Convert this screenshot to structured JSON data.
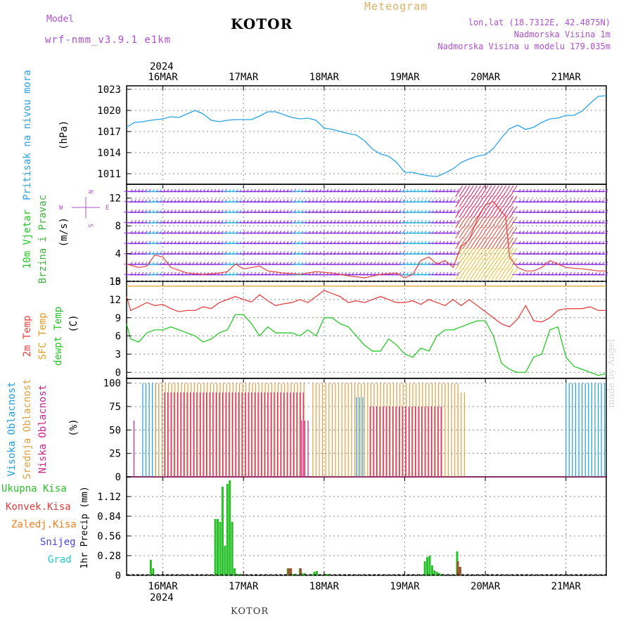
{
  "header": {
    "model_label": "Model",
    "model_name": "wrf-nmm_v3.9.1 e1km",
    "station": "KOTOR",
    "title": "Meteogram",
    "lonlat": "lon,lat (18.7312E, 42.4875N)",
    "elevation": "Nadmorska Visina 1m",
    "model_elevation": "Nadmorska Visina u modelu 179.035m"
  },
  "footer": {
    "station": "KOTOR",
    "credit": "made by Angel"
  },
  "time_axis": {
    "top_year": "2024",
    "bottom_year": "2024",
    "labels": [
      "16MAR",
      "17MAR",
      "18MAR",
      "19MAR",
      "20MAR",
      "21MAR"
    ],
    "start_day": 15.55,
    "end_day": 21.5
  },
  "colors": {
    "pressure": "#29a3e8",
    "wind_label": "#1ec81e",
    "wind_label2": "#3cb43c",
    "t2m": "#e84040",
    "sfc": "#e0a020",
    "dew": "#28c828",
    "cloud_high": "#1ea0e6",
    "cloud_mid": "#e0a040",
    "cloud_low": "#d0208c",
    "precip_total": "#28c028",
    "precip_conv": "#e83a3a",
    "precip_frozen": "#f08020",
    "snow": "#4848e0",
    "hail": "#20c8c8",
    "model_text": "#b050d0"
  },
  "panels": {
    "pressure": {
      "label_main": "Pritisak na nivou mora",
      "unit": "(hPa)"
    },
    "wind": {
      "label_main": "10m Vjetar",
      "label_sub": "Brzina i Pravac",
      "unit": "(m/s)",
      "compass_n": "N",
      "compass_w": "W",
      "compass_e": "E",
      "compass_s": "S"
    },
    "temp": {
      "label_t2m": "2m Temp",
      "label_sfc": "SFC Temp",
      "label_dew": "dewpt Temp",
      "unit": "(C)"
    },
    "cloud": {
      "label_high": "Visoka Oblacnost",
      "label_mid": "Srednja Oblacnost",
      "label_low": "Niska Oblacnost",
      "unit": "(%)"
    },
    "precip": {
      "label_total": "Ukupna Kisa",
      "label_conv": "Konvek.Kisa",
      "label_frozen": "Zaledj.Kisa",
      "label_snow": "Snijeg",
      "label_hail": "Grad",
      "unit": "1hr Precip (mm)"
    }
  },
  "chart_data": [
    {
      "type": "line",
      "name": "pressure",
      "ylim": [
        1009.5,
        1023.5
      ],
      "yticks": [
        "1011",
        "1014",
        "1017",
        "1020",
        "1023"
      ],
      "ytick_values": [
        1011,
        1014,
        1017,
        1020,
        1023
      ],
      "x": [
        15.55,
        15.65,
        15.75,
        15.85,
        16.0,
        16.1,
        16.2,
        16.3,
        16.4,
        16.5,
        16.6,
        16.7,
        16.8,
        16.9,
        17.0,
        17.1,
        17.2,
        17.3,
        17.4,
        17.5,
        17.6,
        17.7,
        17.8,
        17.9,
        18.0,
        18.1,
        18.2,
        18.3,
        18.4,
        18.5,
        18.6,
        18.7,
        18.8,
        18.9,
        19.0,
        19.1,
        19.2,
        19.3,
        19.4,
        19.5,
        19.6,
        19.7,
        19.8,
        19.9,
        20.0,
        20.1,
        20.2,
        20.3,
        20.4,
        20.5,
        20.6,
        20.7,
        20.8,
        20.9,
        21.0,
        21.1,
        21.2,
        21.3,
        21.4,
        21.5
      ],
      "values": [
        1017.6,
        1018.3,
        1018.4,
        1018.6,
        1018.8,
        1019.1,
        1019.0,
        1019.5,
        1020.0,
        1019.5,
        1018.6,
        1018.4,
        1018.6,
        1018.7,
        1018.7,
        1018.7,
        1019.2,
        1019.8,
        1019.8,
        1019.4,
        1019.0,
        1018.8,
        1018.9,
        1018.6,
        1017.5,
        1017.3,
        1017.0,
        1016.7,
        1016.5,
        1015.7,
        1014.5,
        1013.8,
        1013.5,
        1012.6,
        1011.2,
        1011.2,
        1010.9,
        1010.7,
        1010.6,
        1011.1,
        1011.7,
        1012.6,
        1013.1,
        1013.5,
        1013.7,
        1014.6,
        1016.1,
        1017.4,
        1017.9,
        1017.3,
        1017.6,
        1018.3,
        1018.8,
        1018.9,
        1019.3,
        1019.3,
        1019.9,
        1021.0,
        1022.0,
        1022.1
      ]
    },
    {
      "type": "line",
      "name": "wind",
      "ylim": [
        0,
        14
      ],
      "yticks": [
        "0",
        "4",
        "8",
        "12"
      ],
      "ytick_values": [
        0,
        4,
        8,
        12
      ],
      "barb_levels": [
        1,
        2.5,
        4,
        5.5,
        7,
        8.5,
        10,
        11.5,
        13
      ],
      "x": [
        15.55,
        15.7,
        15.8,
        15.9,
        16.0,
        16.1,
        16.3,
        16.5,
        16.7,
        16.8,
        16.9,
        17.0,
        17.1,
        17.2,
        17.3,
        17.5,
        17.7,
        17.9,
        18.1,
        18.3,
        18.5,
        18.7,
        18.9,
        19.0,
        19.1,
        19.2,
        19.3,
        19.4,
        19.5,
        19.6,
        19.7,
        19.8,
        19.9,
        20.0,
        20.1,
        20.2,
        20.25,
        20.3,
        20.4,
        20.5,
        20.6,
        20.7,
        20.8,
        20.9,
        21.0,
        21.2,
        21.4,
        21.5
      ],
      "values": [
        2.5,
        2.0,
        2.2,
        3.8,
        3.5,
        2.0,
        1.2,
        1.0,
        1.2,
        1.4,
        2.5,
        1.8,
        2.0,
        2.2,
        1.5,
        1.2,
        1.0,
        1.4,
        1.2,
        0.8,
        0.5,
        1.0,
        1.2,
        0.5,
        1.0,
        3.0,
        3.5,
        2.5,
        3.0,
        2.0,
        5.0,
        6.0,
        9.0,
        11.0,
        11.5,
        10.0,
        9.5,
        3.5,
        2.0,
        1.5,
        1.5,
        2.0,
        3.0,
        2.5,
        2.0,
        1.8,
        1.5,
        1.5
      ]
    },
    {
      "type": "line",
      "name": "temperature",
      "ylim": [
        -1,
        15
      ],
      "yticks": [
        "0",
        "3",
        "6",
        "9",
        "12",
        "15"
      ],
      "ytick_values": [
        0,
        3,
        6,
        9,
        12,
        15
      ],
      "series": [
        {
          "name": "SFC Temp",
          "x": [
            15.55,
            21.5
          ],
          "values": [
            14.2,
            14.2
          ]
        },
        {
          "name": "2m Temp",
          "x": [
            15.55,
            15.6,
            15.7,
            15.8,
            15.9,
            16.0,
            16.1,
            16.2,
            16.3,
            16.4,
            16.5,
            16.6,
            16.7,
            16.8,
            16.9,
            17.0,
            17.1,
            17.2,
            17.3,
            17.4,
            17.5,
            17.6,
            17.7,
            17.8,
            17.9,
            18.0,
            18.1,
            18.2,
            18.3,
            18.4,
            18.5,
            18.6,
            18.7,
            18.8,
            18.9,
            19.0,
            19.1,
            19.2,
            19.3,
            19.4,
            19.5,
            19.6,
            19.7,
            19.8,
            19.9,
            20.0,
            20.1,
            20.2,
            20.3,
            20.4,
            20.5,
            20.6,
            20.7,
            20.8,
            20.9,
            21.0,
            21.1,
            21.2,
            21.3,
            21.4,
            21.5
          ],
          "values": [
            12.5,
            10.2,
            10.8,
            11.5,
            11.0,
            11.2,
            10.5,
            10.0,
            10.2,
            10.2,
            10.8,
            10.5,
            11.5,
            12.0,
            12.5,
            12.0,
            11.6,
            12.8,
            11.8,
            11.0,
            11.3,
            11.5,
            12.0,
            11.5,
            12.5,
            13.5,
            13.0,
            12.5,
            11.5,
            11.8,
            11.5,
            12.0,
            12.5,
            12.0,
            11.5,
            11.5,
            11.8,
            11.2,
            12.0,
            11.5,
            11.0,
            12.0,
            11.0,
            12.0,
            11.0,
            10.0,
            9.0,
            8.0,
            7.5,
            8.8,
            11.0,
            8.5,
            8.3,
            9.0,
            10.2,
            10.5,
            10.5,
            10.5,
            10.8,
            10.2,
            10.2
          ]
        },
        {
          "name": "dewpt Temp",
          "x": [
            15.55,
            15.6,
            15.7,
            15.8,
            15.9,
            16.0,
            16.1,
            16.2,
            16.3,
            16.4,
            16.5,
            16.6,
            16.7,
            16.8,
            16.9,
            17.0,
            17.1,
            17.2,
            17.3,
            17.4,
            17.5,
            17.6,
            17.7,
            17.8,
            17.9,
            18.0,
            18.1,
            18.2,
            18.3,
            18.4,
            18.5,
            18.6,
            18.7,
            18.8,
            18.9,
            19.0,
            19.1,
            19.2,
            19.3,
            19.4,
            19.5,
            19.6,
            19.7,
            19.8,
            19.9,
            20.0,
            20.1,
            20.2,
            20.3,
            20.35,
            20.4,
            20.5,
            20.6,
            20.7,
            20.8,
            20.9,
            21.0,
            21.1,
            21.2,
            21.3,
            21.4,
            21.5
          ],
          "values": [
            8.0,
            5.5,
            5.0,
            6.5,
            7.0,
            7.0,
            7.5,
            7.0,
            6.5,
            6.0,
            5.0,
            5.5,
            6.5,
            7.0,
            9.5,
            9.5,
            8.0,
            6.0,
            7.5,
            6.5,
            6.5,
            6.5,
            6.0,
            7.0,
            6.0,
            9.0,
            9.0,
            8.0,
            7.5,
            6.0,
            4.5,
            3.5,
            3.5,
            5.5,
            4.5,
            3.0,
            2.5,
            4.0,
            3.5,
            6.0,
            7.0,
            7.0,
            7.5,
            8.0,
            8.5,
            8.5,
            6.0,
            1.5,
            0.5,
            0.2,
            0.0,
            0.0,
            2.5,
            3.0,
            7.0,
            7.5,
            2.5,
            1.0,
            0.5,
            0.0,
            -0.5,
            -0.2
          ]
        }
      ]
    },
    {
      "type": "bar",
      "name": "cloud",
      "ylim": [
        0,
        105
      ],
      "yticks": [
        "0",
        "25",
        "50",
        "75",
        "100"
      ],
      "ytick_values": [
        0,
        25,
        50,
        75,
        100
      ],
      "series": [
        {
          "name": "Visoka Oblacnost",
          "segments": [
            [
              15.75,
              16.0,
              100
            ],
            [
              18.4,
              18.5,
              85
            ],
            [
              21.0,
              21.5,
              100
            ]
          ]
        },
        {
          "name": "Srednja Oblacnost",
          "segments": [
            [
              15.9,
              17.75,
              100
            ],
            [
              17.85,
              19.65,
              100
            ],
            [
              19.65,
              19.75,
              90
            ]
          ]
        },
        {
          "name": "Niska Oblacnost",
          "segments": [
            [
              15.62,
              15.63,
              60
            ],
            [
              16.0,
              17.75,
              90
            ],
            [
              17.7,
              17.8,
              60
            ],
            [
              18.55,
              19.45,
              75
            ]
          ]
        }
      ]
    },
    {
      "type": "bar",
      "name": "precipitation",
      "ylim": [
        0,
        1.4
      ],
      "yticks": [
        "0",
        "0.28",
        "0.56",
        "0.84",
        "1.12"
      ],
      "ytick_values": [
        0,
        0.28,
        0.56,
        0.84,
        1.12
      ],
      "series": [
        {
          "name": "Ukupna Kisa",
          "x": [
            15.85,
            15.88,
            16.65,
            16.68,
            16.71,
            16.74,
            16.77,
            16.8,
            16.83,
            16.86,
            16.89,
            16.92,
            16.95,
            17.55,
            17.58,
            17.61,
            17.64,
            17.7,
            17.73,
            17.76,
            17.85,
            17.88,
            17.91,
            18.0,
            18.03,
            18.06,
            19.25,
            19.28,
            19.31,
            19.34,
            19.37,
            19.4,
            19.43,
            19.46,
            19.65,
            19.68
          ],
          "values": [
            0.22,
            0.1,
            0.8,
            0.8,
            0.76,
            1.26,
            0.42,
            1.3,
            1.35,
            0.76,
            0.1,
            0.02,
            0.02,
            0.1,
            0.1,
            0.02,
            0.02,
            0.1,
            0.03,
            0.03,
            0.02,
            0.05,
            0.06,
            0.02,
            0.02,
            0.02,
            0.2,
            0.26,
            0.28,
            0.14,
            0.07,
            0.05,
            0.03,
            0.02,
            0.34,
            0.12
          ]
        },
        {
          "name": "Konvek.Kisa",
          "x": [
            17.55,
            17.58,
            17.7,
            19.65,
            19.68
          ],
          "values": [
            0.1,
            0.1,
            0.1,
            0.2,
            0.12
          ]
        }
      ]
    }
  ]
}
